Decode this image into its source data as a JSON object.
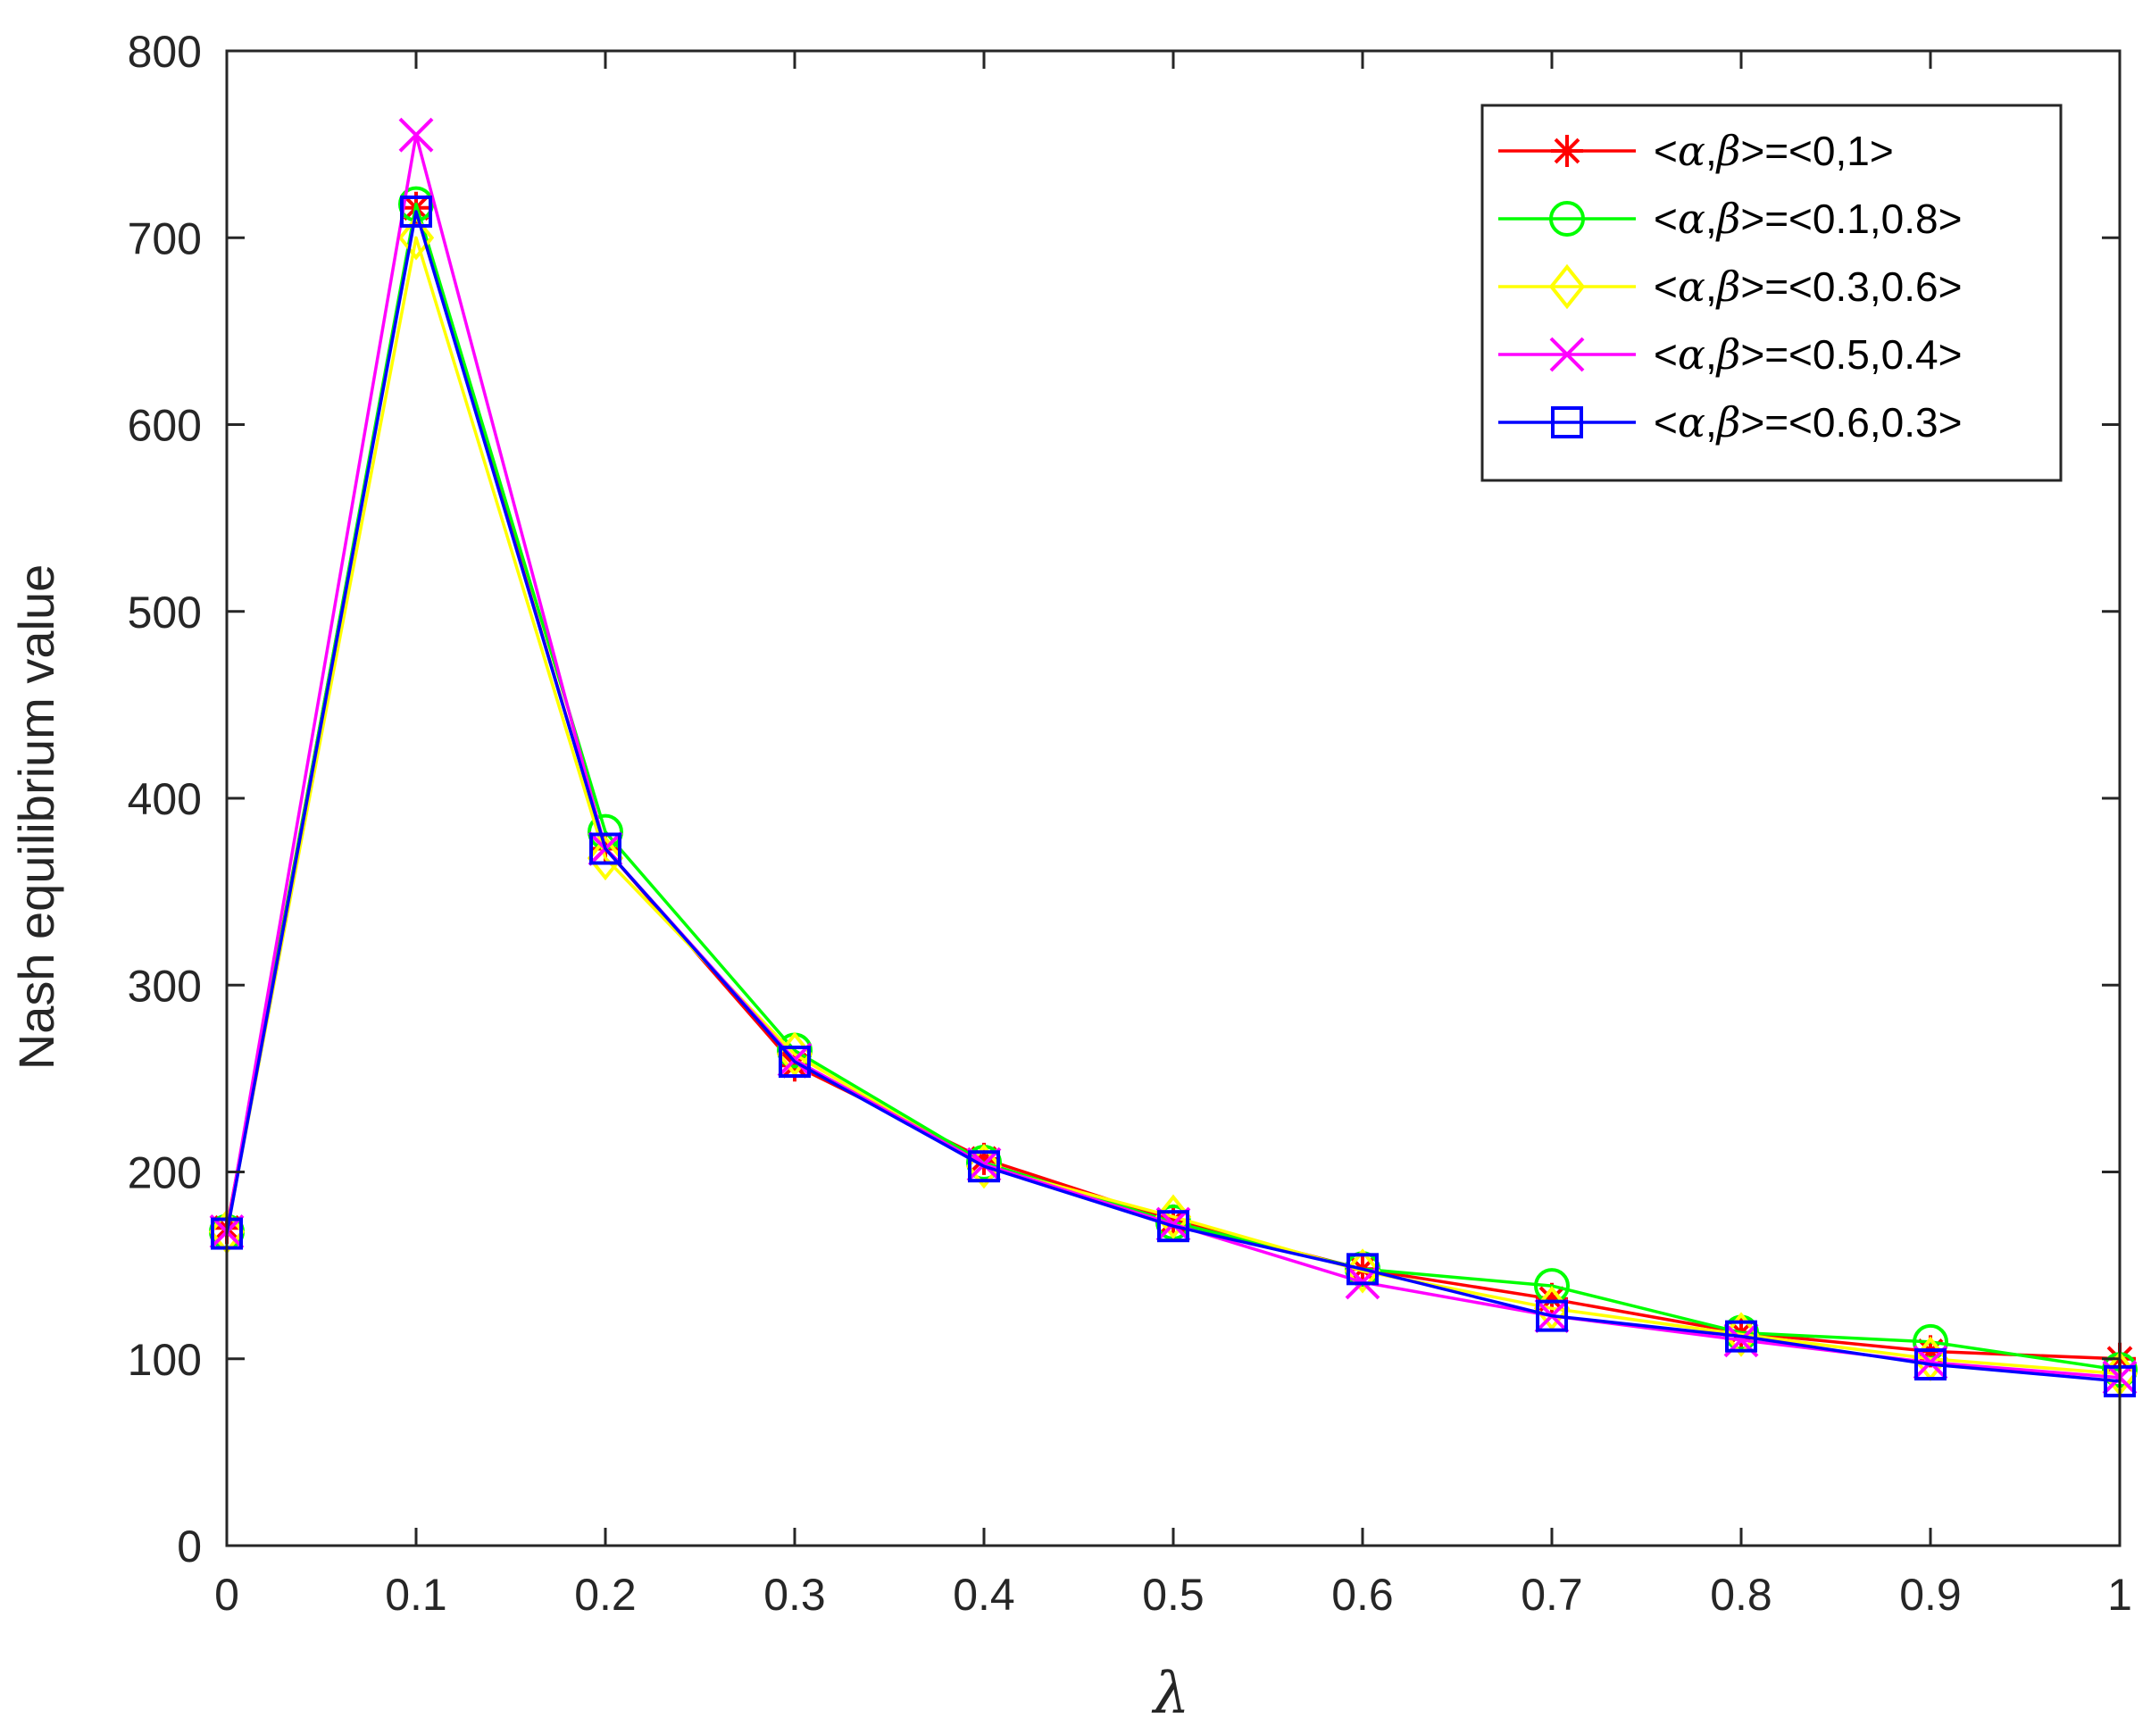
{
  "chart_data": {
    "type": "line",
    "title": "",
    "xlabel": "λ",
    "ylabel": "Nash equilibrium value",
    "x": [
      0,
      0.1,
      0.2,
      0.3,
      0.4,
      0.5,
      0.6,
      0.7,
      0.8,
      0.9,
      1
    ],
    "xlim": [
      0,
      1
    ],
    "ylim": [
      0,
      800
    ],
    "x_ticks": [
      "0",
      "0.1",
      "0.2",
      "0.3",
      "0.4",
      "0.5",
      "0.6",
      "0.7",
      "0.8",
      "0.9",
      "1"
    ],
    "y_ticks": [
      "0",
      "100",
      "200",
      "300",
      "400",
      "500",
      "600",
      "700",
      "800"
    ],
    "grid": false,
    "legend_position": "top-right",
    "series": [
      {
        "name": "<α,β>=<0,1>",
        "name_parts": {
          "pre": "<",
          "a": "α",
          "sep": ",",
          "b": "β",
          "post": ">=<0,1>"
        },
        "color": "#ff0000",
        "marker": "asterisk",
        "values": [
          170,
          716,
          373,
          257,
          207,
          174,
          148,
          132,
          114,
          104,
          100
        ]
      },
      {
        "name": "<α,β>=<0.1,0.8>",
        "name_parts": {
          "pre": "<",
          "a": "α",
          "sep": ",",
          "b": "β",
          "post": ">=<0.1,0.8>"
        },
        "color": "#00ff00",
        "marker": "circle",
        "values": [
          168,
          718,
          382,
          265,
          205,
          173,
          148,
          139,
          114,
          109,
          94
        ]
      },
      {
        "name": "<α,β>=<0.3,0.6>",
        "name_parts": {
          "pre": "<",
          "a": "α",
          "sep": ",",
          "b": "β",
          "post": ">=<0.3,0.6>"
        },
        "color": "#ffff00",
        "marker": "diamond",
        "values": [
          168,
          700,
          368,
          263,
          203,
          176,
          147,
          127,
          113,
          100,
          92
        ]
      },
      {
        "name": "<α,β>=<0.5,0.4>",
        "name_parts": {
          "pre": "<",
          "a": "α",
          "sep": ",",
          "b": "β",
          "post": ">=<0.5,0.4>"
        },
        "color": "#ff00ff",
        "marker": "x",
        "values": [
          168,
          755,
          373,
          260,
          204,
          172,
          141,
          123,
          110,
          98,
          90
        ]
      },
      {
        "name": "<α,β>=<0.6,0.3>",
        "name_parts": {
          "pre": "<",
          "a": "α",
          "sep": ",",
          "b": "β",
          "post": ">=<0.6,0.3>"
        },
        "color": "#0000ff",
        "marker": "square",
        "values": [
          167,
          714,
          373,
          259,
          203,
          171,
          148,
          123,
          112,
          97,
          88
        ]
      }
    ]
  }
}
